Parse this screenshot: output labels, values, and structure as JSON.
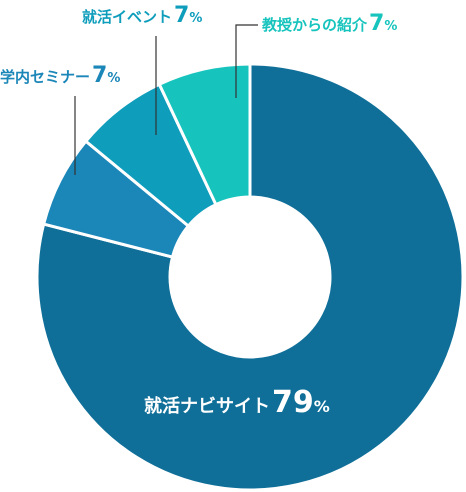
{
  "chart_data": {
    "type": "pie",
    "title": "",
    "donut": true,
    "slices": [
      {
        "label": "就活ナビサイト",
        "value": 79,
        "unit": "%",
        "color": "#0f6f98"
      },
      {
        "label": "学内セミナー",
        "value": 7,
        "unit": "%",
        "color": "#1b86b8"
      },
      {
        "label": "就活イベント",
        "value": 7,
        "unit": "%",
        "color": "#0f9dbc"
      },
      {
        "label": "教授からの紹介",
        "value": 7,
        "unit": "%",
        "color": "#16c4bd"
      }
    ]
  }
}
